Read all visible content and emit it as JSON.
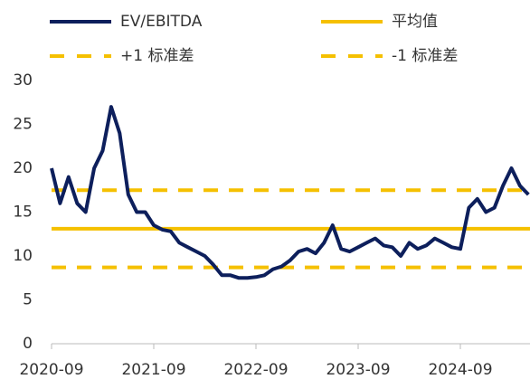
{
  "chart_data": {
    "type": "line",
    "x": [
      "2020-09",
      "2020-10",
      "2020-11",
      "2020-12",
      "2021-01",
      "2021-02",
      "2021-03",
      "2021-04",
      "2021-05",
      "2021-06",
      "2021-07",
      "2021-08",
      "2021-09",
      "2021-10",
      "2021-11",
      "2021-12",
      "2022-01",
      "2022-02",
      "2022-03",
      "2022-04",
      "2022-05",
      "2022-06",
      "2022-07",
      "2022-08",
      "2022-09",
      "2022-10",
      "2022-11",
      "2022-12",
      "2023-01",
      "2023-02",
      "2023-03",
      "2023-04",
      "2023-05",
      "2023-06",
      "2023-07",
      "2023-08",
      "2023-09",
      "2023-10",
      "2023-11",
      "2023-12",
      "2024-01",
      "2024-02",
      "2024-03",
      "2024-04",
      "2024-05",
      "2024-06",
      "2024-07",
      "2024-08",
      "2024-09",
      "2024-10",
      "2024-11",
      "2024-12",
      "2025-01",
      "2025-02",
      "2025-03",
      "2025-04",
      "2025-05"
    ],
    "series": [
      {
        "name": "EV/EBITDA",
        "color": "#0d1f5c",
        "values": [
          20,
          16,
          19,
          16,
          15,
          20,
          22,
          27,
          24,
          17,
          15,
          15,
          13.5,
          13,
          12.8,
          11.5,
          11,
          10.5,
          10,
          9,
          7.8,
          7.8,
          7.5,
          7.5,
          7.6,
          7.8,
          8.5,
          8.8,
          9.5,
          10.5,
          10.8,
          10.3,
          11.5,
          13.5,
          10.8,
          10.5,
          11,
          11.5,
          12,
          11.2,
          11,
          10,
          11.5,
          10.8,
          11.2,
          12,
          11.5,
          11,
          10.8,
          15.5,
          16.5,
          15,
          15.5,
          18,
          20,
          18,
          17
        ]
      }
    ],
    "reference_lines": [
      {
        "name": "平均值",
        "value": 13.1,
        "color": "#f5c000",
        "style": "solid"
      },
      {
        "name": "+1 标准差",
        "value": 17.5,
        "color": "#f5c000",
        "style": "dashed"
      },
      {
        "name": "-1 标准差",
        "value": 8.7,
        "color": "#f5c000",
        "style": "dashed"
      }
    ],
    "xticks": [
      "2020-09",
      "2021-09",
      "2022-09",
      "2023-09",
      "2024-09"
    ],
    "ylim": [
      0,
      30
    ],
    "yticks": [
      0,
      5,
      10,
      15,
      20,
      25,
      30
    ],
    "grid": false
  }
}
